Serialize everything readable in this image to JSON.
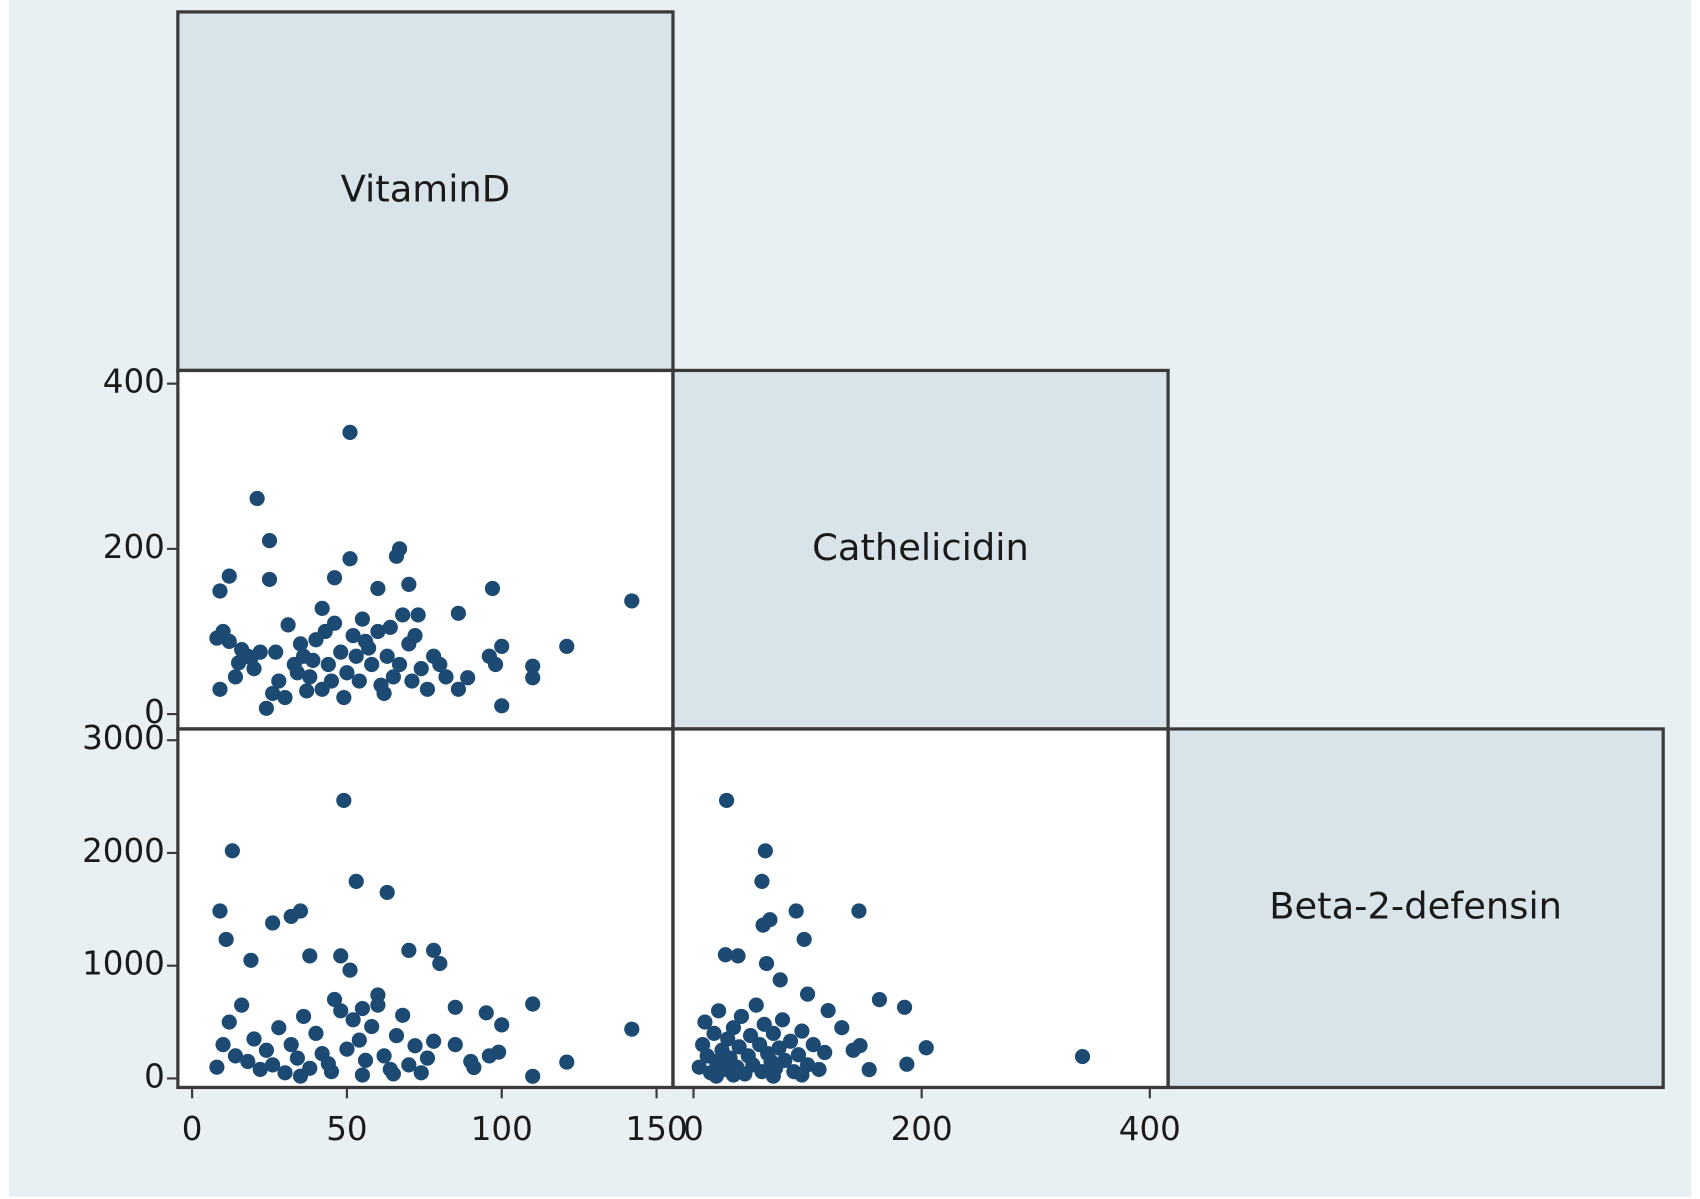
{
  "chart_data": {
    "type": "scatter_matrix",
    "color": "#1c4a72",
    "variables": [
      {
        "name": "VitaminD",
        "lim": [
          -4.6,
          155.3
        ],
        "ticks": [
          0,
          50,
          100,
          150
        ]
      },
      {
        "name": "Cathelicidin",
        "lim": [
          -18,
          416
        ],
        "ticks": [
          0,
          200,
          400
        ]
      },
      {
        "name": "Beta-2-defensin",
        "lim": [
          -80,
          3100
        ],
        "ticks": [
          0,
          1000,
          2000,
          3000
        ]
      }
    ],
    "panels": [
      {
        "x": [
          51,
          21,
          25,
          25,
          12,
          9,
          51,
          67,
          66,
          60,
          70,
          46,
          97,
          142,
          121,
          100,
          110,
          110,
          100,
          89,
          86,
          24,
          9,
          86,
          31,
          42,
          8,
          10,
          12,
          15,
          18,
          20,
          22,
          28,
          30,
          33,
          35,
          36,
          38,
          40,
          42,
          44,
          46,
          48,
          50,
          52,
          54,
          55,
          57,
          58,
          60,
          62,
          63,
          65,
          68,
          70,
          72,
          74,
          76,
          78,
          80,
          82,
          27,
          34,
          39,
          45,
          53,
          61,
          67,
          73,
          14,
          19,
          26,
          37,
          43,
          49,
          56,
          64,
          71,
          96,
          98,
          16
        ],
        "y": [
          341,
          261,
          210,
          163,
          167,
          149,
          188,
          200,
          191,
          152,
          157,
          165,
          152,
          137,
          82,
          82,
          58,
          44,
          10,
          44,
          30,
          7,
          30,
          122,
          108,
          128,
          92,
          100,
          88,
          62,
          70,
          55,
          75,
          40,
          20,
          60,
          85,
          70,
          45,
          90,
          30,
          60,
          110,
          75,
          50,
          95,
          40,
          115,
          80,
          60,
          100,
          25,
          70,
          45,
          120,
          85,
          95,
          55,
          30,
          70,
          60,
          45,
          75,
          50,
          65,
          40,
          70,
          35,
          60,
          120,
          45,
          68,
          25,
          28,
          100,
          20,
          88,
          105,
          40,
          70,
          60,
          78
        ]
      },
      {
        "x": [
          49,
          13,
          53,
          63,
          9,
          35,
          32,
          26,
          11,
          70,
          78,
          48,
          38,
          19,
          51,
          80,
          110,
          142,
          100,
          95,
          85,
          121,
          110,
          91,
          99,
          8,
          10,
          12,
          14,
          16,
          18,
          20,
          22,
          24,
          26,
          28,
          30,
          32,
          34,
          36,
          38,
          40,
          42,
          44,
          46,
          48,
          50,
          52,
          54,
          56,
          58,
          60,
          62,
          64,
          66,
          68,
          70,
          72,
          74,
          76,
          78,
          35,
          45,
          55,
          65,
          85,
          90,
          96,
          60,
          55
        ],
        "y": [
          2466,
          2019,
          1748,
          1650,
          1485,
          1485,
          1437,
          1379,
          1233,
          1136,
          1136,
          1087,
          1087,
          1048,
          961,
          1019,
          660,
          437,
          475,
          582,
          631,
          145,
          19,
          97,
          233,
          100,
          300,
          500,
          200,
          650,
          150,
          350,
          80,
          250,
          120,
          450,
          50,
          300,
          180,
          550,
          90,
          400,
          220,
          130,
          700,
          600,
          260,
          520,
          340,
          160,
          460,
          740,
          200,
          80,
          380,
          560,
          120,
          290,
          50,
          180,
          330,
          20,
          60,
          30,
          40,
          300,
          150,
          200,
          650,
          620
        ]
      },
      {
        "x": [
          29,
          63,
          60,
          90,
          145,
          67,
          61,
          28,
          39,
          97,
          64,
          76,
          100,
          118,
          163,
          185,
          204,
          187,
          341,
          154,
          146,
          5,
          8,
          10,
          12,
          15,
          18,
          20,
          22,
          25,
          28,
          30,
          32,
          35,
          38,
          40,
          42,
          45,
          48,
          50,
          52,
          55,
          58,
          60,
          62,
          65,
          68,
          70,
          72,
          75,
          78,
          80,
          85,
          88,
          92,
          95,
          100,
          105,
          110,
          115,
          130,
          140,
          20,
          35,
          70,
          95
        ],
        "y": [
          2466,
          2019,
          1748,
          1485,
          1485,
          1408,
          1360,
          1097,
          1087,
          1233,
          1019,
          874,
          748,
          602,
          699,
          631,
          272,
          126,
          194,
          78,
          291,
          100,
          300,
          500,
          200,
          50,
          400,
          150,
          600,
          250,
          80,
          350,
          180,
          450,
          100,
          280,
          550,
          40,
          200,
          380,
          120,
          650,
          300,
          60,
          480,
          220,
          150,
          400,
          90,
          270,
          520,
          160,
          330,
          60,
          210,
          420,
          120,
          300,
          80,
          230,
          450,
          250,
          20,
          30,
          20,
          30
        ]
      }
    ]
  }
}
